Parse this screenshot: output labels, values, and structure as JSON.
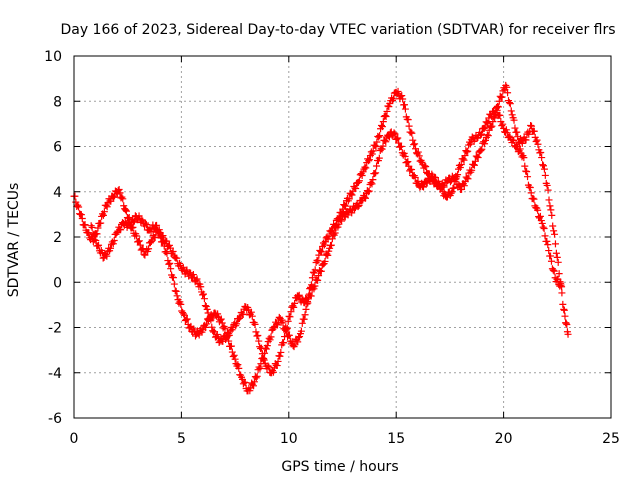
{
  "chart_data": {
    "type": "scatter",
    "title": "Day 166 of 2023, Sidereal Day-to-day VTEC variation (SDTVAR) for receiver flrs",
    "xlabel": "GPS time / hours",
    "ylabel": "SDTVAR / TECUs",
    "xlim": [
      0,
      25
    ],
    "ylim": [
      -6,
      10
    ],
    "xticks": [
      "0",
      "5",
      "10",
      "15",
      "20",
      "25"
    ],
    "yticks": [
      "-6",
      "-4",
      "-2",
      "0",
      "2",
      "4",
      "6",
      "8",
      "10"
    ],
    "grid": true,
    "marker": "+",
    "color": "#ff0000",
    "series": [
      {
        "x": [
          0.0,
          0.3,
          0.6,
          0.9,
          1.2,
          1.5,
          1.8,
          2.1,
          2.4,
          2.7,
          3.0,
          3.3,
          3.6,
          3.9,
          4.2,
          4.5,
          4.8,
          5.1,
          5.4,
          5.7,
          6.0,
          6.3,
          6.6,
          6.9,
          7.2,
          7.5,
          7.8,
          8.1,
          8.4,
          8.7,
          9.0,
          9.3,
          9.6,
          9.9,
          10.2,
          10.5,
          10.8,
          11.1,
          11.4,
          11.7,
          12.0,
          12.3,
          12.6,
          12.9,
          13.2,
          13.5,
          13.8,
          14.1,
          14.4,
          14.7,
          15.0,
          15.3,
          15.6,
          15.9,
          16.2,
          16.5,
          16.8,
          17.1,
          17.4,
          17.7,
          18.0,
          18.3,
          18.6,
          18.9,
          19.2,
          19.5,
          19.8,
          20.1,
          20.4,
          20.7,
          21.0,
          21.3,
          21.6,
          21.9,
          22.2,
          22.5,
          22.8,
          23.0
        ],
        "y": [
          3.8,
          3.0,
          2.2,
          1.8,
          2.6,
          3.4,
          3.8,
          4.1,
          3.2,
          2.4,
          1.8,
          1.2,
          1.8,
          2.3,
          1.6,
          0.6,
          -0.6,
          -1.4,
          -2.0,
          -2.3,
          -2.1,
          -1.6,
          -1.4,
          -1.8,
          -2.6,
          -3.4,
          -4.2,
          -4.8,
          -4.4,
          -3.6,
          -2.8,
          -2.0,
          -1.6,
          -2.2,
          -2.8,
          -2.4,
          -1.2,
          0.2,
          1.2,
          1.8,
          2.3,
          2.8,
          3.4,
          3.9,
          4.4,
          5.0,
          5.6,
          6.2,
          7.1,
          7.9,
          8.4,
          8.1,
          6.9,
          5.9,
          5.3,
          4.8,
          4.4,
          4.2,
          4.5,
          4.6,
          4.1,
          4.6,
          5.2,
          5.8,
          6.4,
          7.1,
          8.0,
          8.7,
          7.4,
          6.2,
          6.3,
          6.9,
          6.1,
          5.0,
          3.2,
          1.1,
          -1.2,
          -2.3
        ]
      },
      {
        "x": [
          0.8,
          1.1,
          1.4,
          1.7,
          2.0,
          2.3,
          2.6,
          2.9,
          3.2,
          3.5,
          3.8,
          4.1,
          4.4,
          4.7,
          5.0,
          5.3,
          5.6,
          5.9,
          6.2,
          6.5,
          6.8,
          7.1,
          7.4,
          7.7,
          8.0,
          8.3,
          8.6,
          8.9,
          9.2,
          9.5,
          9.8,
          10.1,
          10.4,
          10.7,
          11.0,
          11.3,
          11.6,
          11.9,
          12.2,
          12.5,
          12.8,
          13.1,
          13.4,
          13.7,
          14.0,
          14.3,
          14.6,
          14.9,
          15.2,
          15.5,
          15.8,
          16.1,
          16.4,
          16.7,
          17.0,
          17.3,
          17.6,
          17.9,
          18.2,
          18.5,
          18.8,
          19.1,
          19.4,
          19.7,
          20.0,
          20.3,
          20.6,
          20.9,
          21.2,
          21.5,
          21.8,
          22.1,
          22.4,
          22.7
        ],
        "y": [
          2.5,
          1.6,
          1.1,
          1.5,
          2.2,
          2.6,
          2.5,
          2.9,
          2.7,
          2.3,
          2.5,
          2.0,
          1.6,
          1.1,
          0.6,
          0.4,
          0.2,
          -0.2,
          -1.2,
          -2.2,
          -2.6,
          -2.4,
          -2.0,
          -1.6,
          -1.1,
          -1.5,
          -2.6,
          -3.6,
          -4.0,
          -3.5,
          -2.4,
          -1.3,
          -0.6,
          -0.9,
          -0.6,
          0.1,
          0.8,
          1.5,
          2.4,
          2.9,
          3.1,
          3.3,
          3.6,
          4.0,
          4.8,
          5.9,
          6.5,
          6.6,
          6.0,
          5.3,
          4.7,
          4.2,
          4.4,
          4.7,
          4.3,
          3.8,
          4.0,
          5.0,
          5.6,
          6.3,
          6.4,
          6.8,
          7.4,
          7.6,
          6.8,
          6.4,
          6.0,
          5.6,
          4.2,
          3.3,
          2.6,
          1.4,
          0.2,
          -0.2
        ]
      }
    ]
  }
}
